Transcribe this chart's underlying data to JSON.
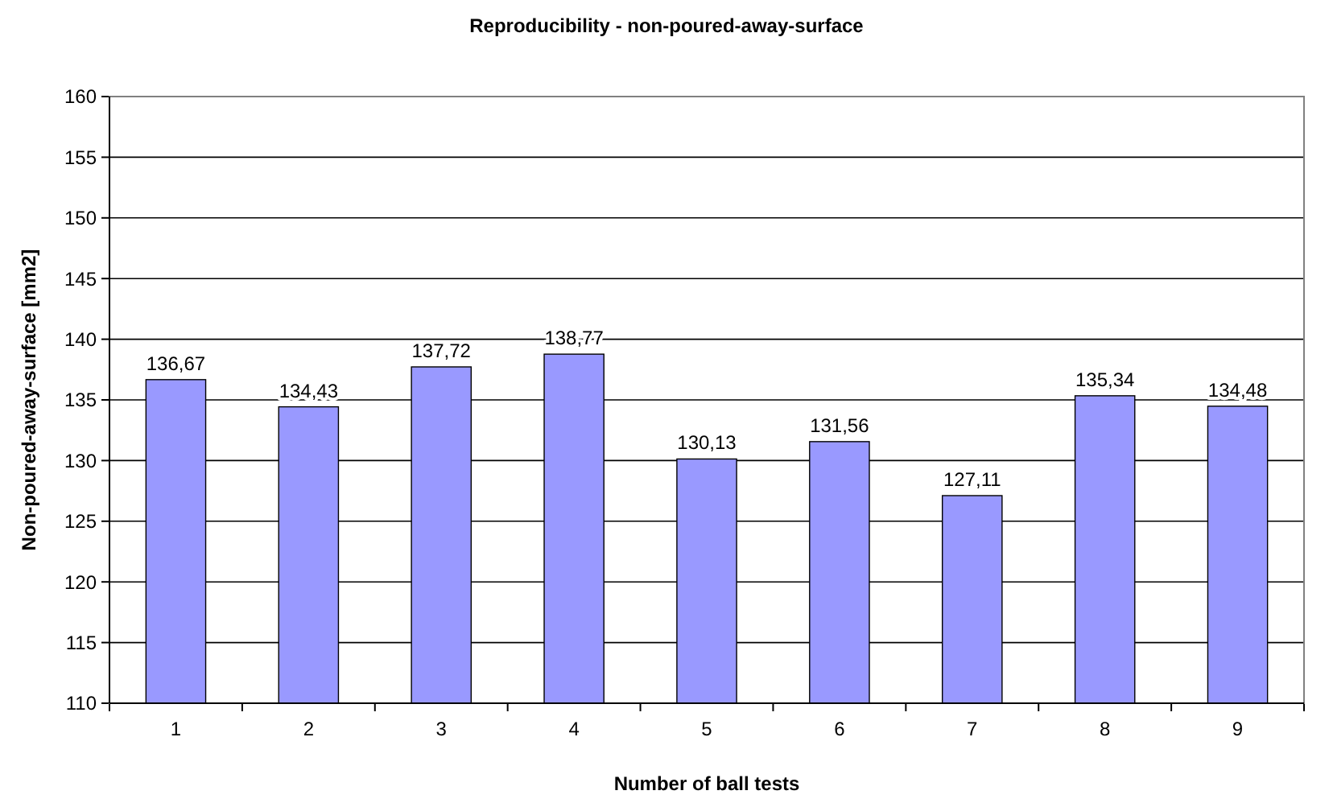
{
  "chart_data": {
    "type": "bar",
    "title": "Reproducibility - non-poured-away-surface",
    "xlabel": "Number of ball tests",
    "ylabel": "Non-poured-away-surface [mm2]",
    "categories": [
      "1",
      "2",
      "3",
      "4",
      "5",
      "6",
      "7",
      "8",
      "9"
    ],
    "values": [
      136.67,
      134.43,
      137.72,
      138.77,
      130.13,
      131.56,
      127.11,
      135.34,
      134.48
    ],
    "value_labels": [
      "136,67",
      "134,43",
      "137,72",
      "138,77",
      "130,13",
      "131,56",
      "127,11",
      "135,34",
      "134,48"
    ],
    "color": "#9999ff",
    "ylim": [
      110,
      160
    ],
    "yticks": [
      110,
      115,
      120,
      125,
      130,
      135,
      140,
      145,
      150,
      155,
      160
    ],
    "grid": "y"
  }
}
